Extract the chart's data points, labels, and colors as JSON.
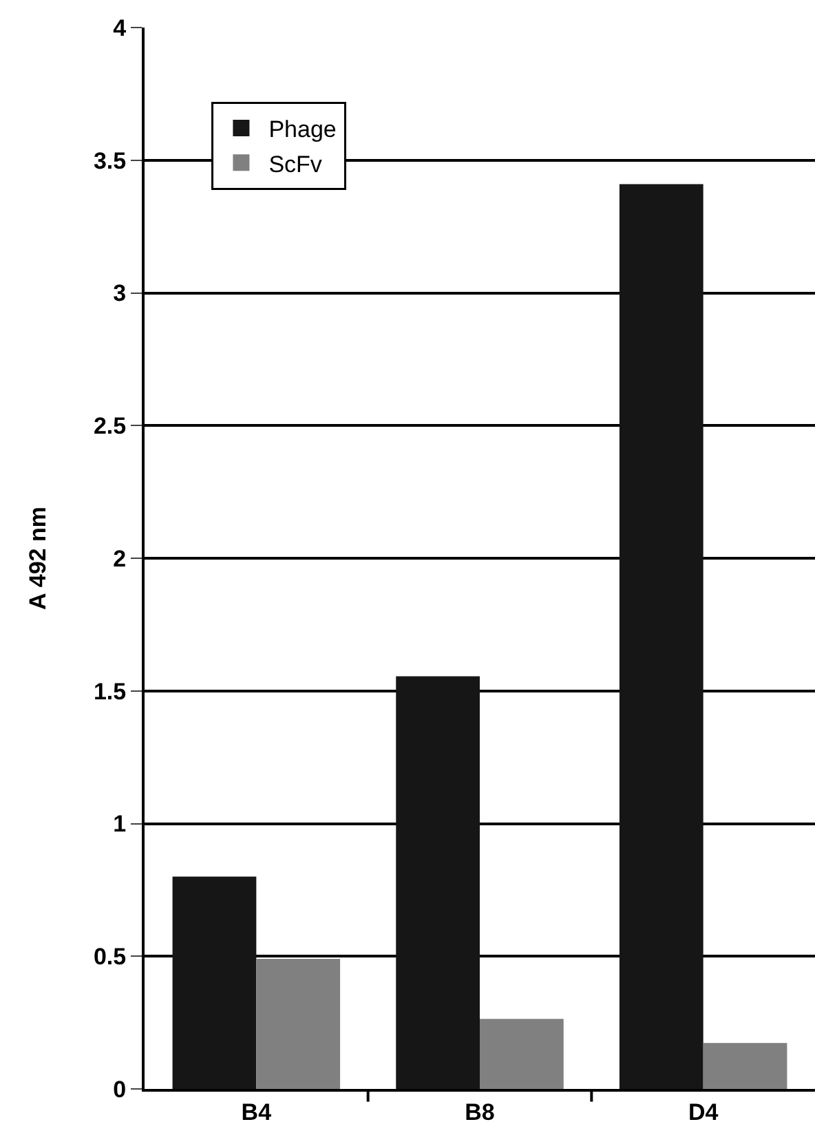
{
  "chart_data": {
    "type": "bar",
    "ylabel": "A 492 nm",
    "categories": [
      "B4",
      "B8",
      "D4"
    ],
    "series": [
      {
        "name": "Phage",
        "color": "#161616",
        "values": [
          0.8,
          1.555,
          3.41
        ]
      },
      {
        "name": "ScFv",
        "color": "#808080",
        "values": [
          0.49,
          0.264,
          0.173
        ]
      }
    ],
    "ylim": [
      0,
      4
    ],
    "yticks": [
      0,
      0.5,
      1,
      1.5,
      2,
      2.5,
      3,
      3.5,
      4
    ],
    "grid": "y",
    "legend": "top left"
  }
}
